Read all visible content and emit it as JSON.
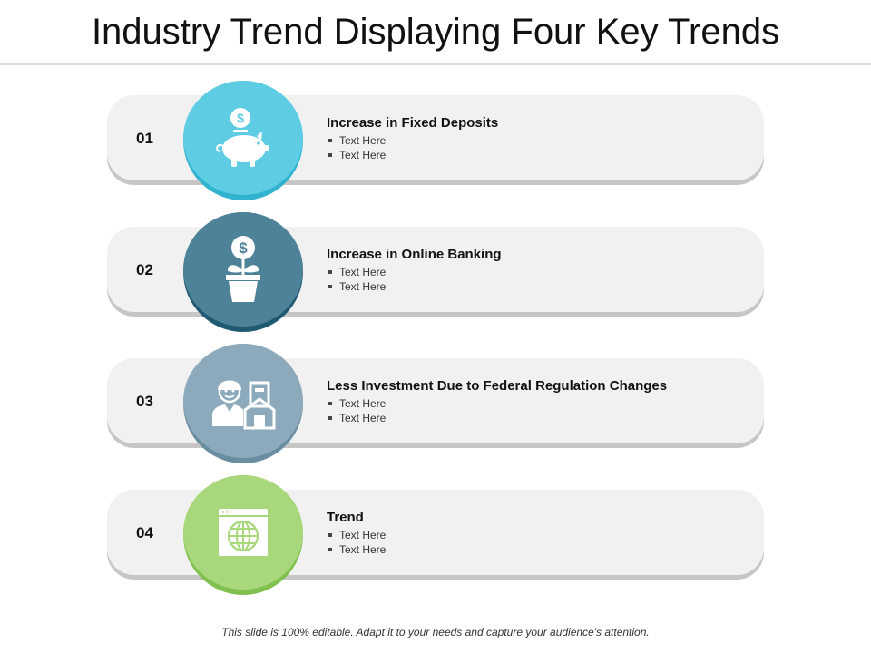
{
  "title": "Industry Trend Displaying Four Key Trends",
  "trends": [
    {
      "number": "01",
      "heading": "Increase in Fixed Deposits",
      "bullets": [
        "Text Here",
        "Text Here"
      ],
      "icon": "piggy-bank-icon",
      "color": "#5ecde3",
      "shadow_color": "#2fb3cf"
    },
    {
      "number": "02",
      "heading": "Increase in Online Banking",
      "bullets": [
        "Text Here",
        "Text Here"
      ],
      "icon": "money-plant-icon",
      "color": "#4e8298",
      "shadow_color": "#1f5a72"
    },
    {
      "number": "03",
      "heading": "Less Investment Due to Federal Regulation Changes",
      "bullets": [
        "Text Here",
        "Text Here"
      ],
      "icon": "businessman-building-icon",
      "color": "#8caabb",
      "shadow_color": "#6a8ea1"
    },
    {
      "number": "04",
      "heading": "Trend",
      "bullets": [
        "Text Here",
        "Text Here"
      ],
      "icon": "web-globe-icon",
      "color": "#a8d87b",
      "shadow_color": "#7fc04f"
    }
  ],
  "footer": "This slide is 100% editable. Adapt it to your needs and capture your audience's attention."
}
